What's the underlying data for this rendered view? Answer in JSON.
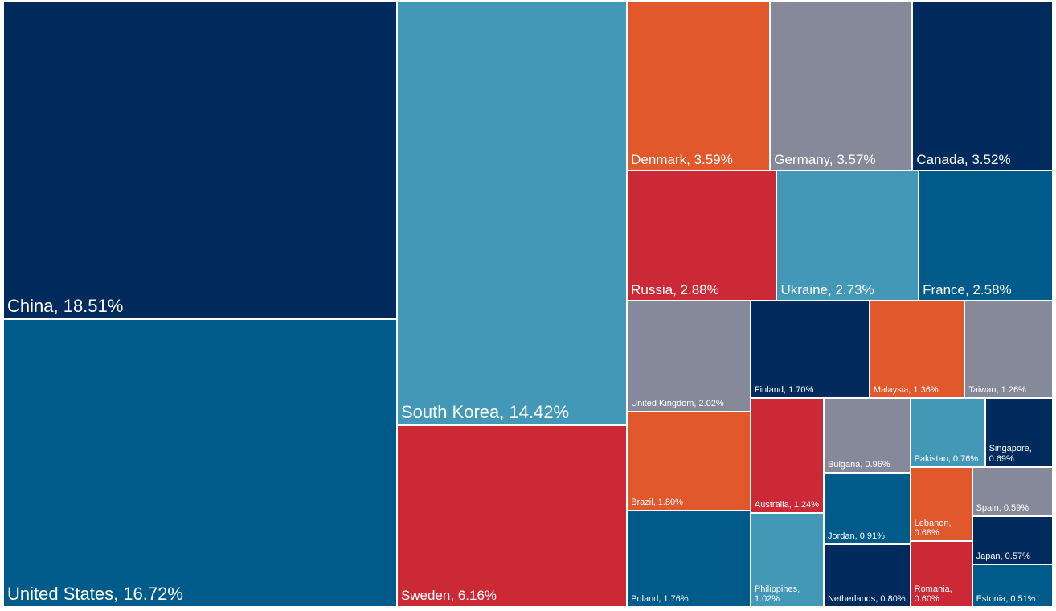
{
  "chart_data": {
    "type": "treemap",
    "values": [
      18.51,
      16.72,
      14.42,
      6.16,
      3.59,
      3.57,
      3.52,
      2.88,
      2.73,
      2.58,
      2.02,
      1.8,
      1.76,
      1.7,
      1.36,
      1.26,
      1.24,
      1.02,
      0.96,
      0.91,
      0.8,
      0.76,
      0.69,
      0.68,
      0.6,
      0.59,
      0.57,
      0.51
    ],
    "value_labels": [
      "China, 18.51%",
      "United States, 16.72%",
      "South Korea, 14.42%",
      "Sweden, 6.16%",
      "Denmark, 3.59%",
      "Germany, 3.57%",
      "Canada, 3.52%",
      "Russia, 2.88%",
      "Ukraine, 2.73%",
      "France, 2.58%",
      "United Kingdom, 2.02%",
      "Brazil, 1.80%",
      "Poland, 1.76%",
      "Finland, 1.70%",
      "Malaysia, 1.36%",
      "Taiwan, 1.26%",
      "Australia, 1.24%",
      "Philippines, 1.02%",
      "Bulgaria, 0.96%",
      "Jordan, 0.91%",
      "Netherlands, 0.80%",
      "Pakistan, 0.76%",
      "Singapore, 0.69%",
      "Lebanon, 0.68%",
      "Romania, 0.60%",
      "Spain, 0.59%",
      "Japan, 0.57%",
      "Estonia, 0.51%"
    ],
    "colors": [
      "#002b5c",
      "#005b8a",
      "#4398b8",
      "#cc2936",
      "#e0582b",
      "#858999",
      "#002b5c",
      "#cc2936",
      "#4398b8",
      "#005b8a",
      "#858999",
      "#e0582b",
      "#005b8a",
      "#002b5c",
      "#e0582b",
      "#858999",
      "#cc2936",
      "#4398b8",
      "#858999",
      "#005b8a",
      "#002b5c",
      "#4398b8",
      "#002b5c",
      "#e0582b",
      "#cc2936",
      "#858999",
      "#002b5c",
      "#005b8a"
    ]
  }
}
